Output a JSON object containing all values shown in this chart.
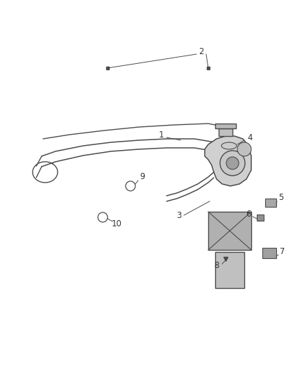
{
  "bg_color": "#ffffff",
  "line_color": "#4a4a4a",
  "label_color": "#333333",
  "font_size": 8.5,
  "figsize": [
    4.38,
    5.33
  ],
  "dpi": 100
}
